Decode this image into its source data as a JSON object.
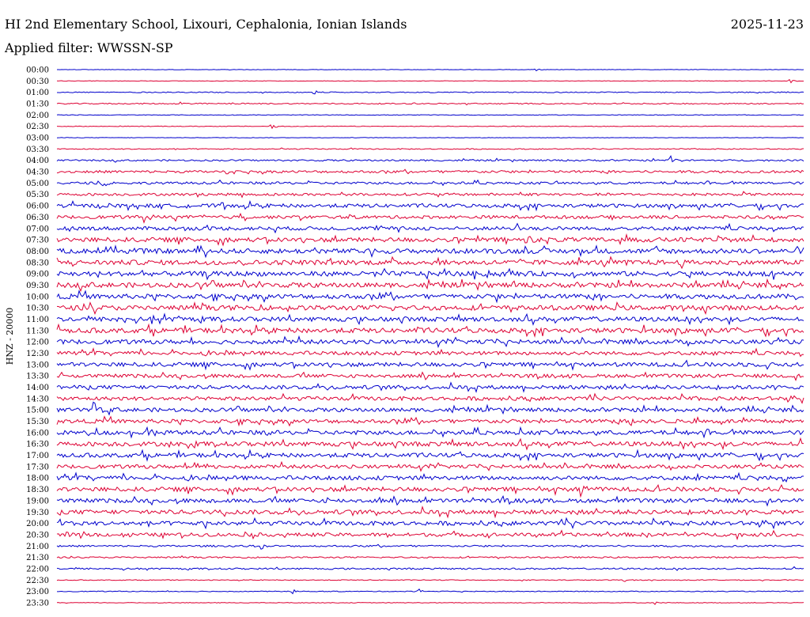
{
  "header": {
    "station": "HI 2nd Elementary School, Lixouri, Cephalonia, Ionian Islands",
    "date": "2025-11-23",
    "filter": "Applied filter: WWSSN-SP"
  },
  "chart_data": {
    "type": "line",
    "title": "HI 2nd Elementary School, Lixouri, Cephalonia, Ionian Islands",
    "subtitle": "Applied filter: WWSSN-SP",
    "ylabel": "HNZ - 20000",
    "xlabel": "",
    "row_labels": [
      "00:00",
      "00:30",
      "01:00",
      "01:30",
      "02:00",
      "02:30",
      "03:00",
      "03:30",
      "04:00",
      "04:30",
      "05:00",
      "05:30",
      "06:00",
      "06:30",
      "07:00",
      "07:30",
      "08:00",
      "08:30",
      "09:00",
      "09:30",
      "10:00",
      "10:30",
      "11:00",
      "11:30",
      "12:00",
      "12:30",
      "13:00",
      "13:30",
      "14:00",
      "14:30",
      "15:00",
      "15:30",
      "16:00",
      "16:30",
      "17:00",
      "17:30",
      "18:00",
      "18:30",
      "19:00",
      "19:30",
      "20:00",
      "20:30",
      "21:00",
      "21:30",
      "22:00",
      "22:30",
      "23:00",
      "23:30"
    ],
    "colors": [
      "#0000cc",
      "#dd0033"
    ],
    "noise_level": [
      0.3,
      0.3,
      0.6,
      0.7,
      0.4,
      0.4,
      0.3,
      0.6,
      1.0,
      1.6,
      1.5,
      1.6,
      2.3,
      2.0,
      2.3,
      2.8,
      3.0,
      3.0,
      3.0,
      3.0,
      3.0,
      3.0,
      2.8,
      3.0,
      2.7,
      2.3,
      2.6,
      2.2,
      2.4,
      2.4,
      2.4,
      2.5,
      2.6,
      2.8,
      2.6,
      2.3,
      2.5,
      2.7,
      2.5,
      2.7,
      2.6,
      2.2,
      1.1,
      0.9,
      1.0,
      0.5,
      0.5,
      0.4
    ],
    "events": [
      {
        "row": 8,
        "minute": 24.5,
        "amplitude": 20
      },
      {
        "row": 13,
        "minute": 3.5,
        "amplitude": 10
      },
      {
        "row": 14,
        "minute": 18.5,
        "amplitude": 8
      },
      {
        "row": 15,
        "minute": 18.8,
        "amplitude": 9
      },
      {
        "row": 10,
        "minute": 1.8,
        "amplitude": 6
      },
      {
        "row": 12,
        "minute": 6.6,
        "amplitude": 6
      },
      {
        "row": 18,
        "minute": 28.7,
        "amplitude": 9
      },
      {
        "row": 30,
        "minute": 1.5,
        "amplitude": 12
      },
      {
        "row": 32,
        "minute": 3.6,
        "amplitude": 10
      },
      {
        "row": 31,
        "minute": 23.0,
        "amplitude": 7
      },
      {
        "row": 37,
        "minute": 21.0,
        "amplitude": 11
      },
      {
        "row": 35,
        "minute": 5.5,
        "amplitude": 5
      },
      {
        "row": 1,
        "minute": 29.4,
        "amplitude": 3
      },
      {
        "row": 2,
        "minute": 10.3,
        "amplitude": 3
      },
      {
        "row": 3,
        "minute": 5.0,
        "amplitude": 3
      },
      {
        "row": 5,
        "minute": 8.6,
        "amplitude": 4
      },
      {
        "row": 9,
        "minute": 6.8,
        "amplitude": 4
      },
      {
        "row": 29,
        "minute": 5.3,
        "amplitude": 5
      },
      {
        "row": 33,
        "minute": 4.5,
        "amplitude": 4
      },
      {
        "row": 40,
        "minute": 0.1,
        "amplitude": 5
      },
      {
        "row": 41,
        "minute": 0.4,
        "amplitude": 5
      },
      {
        "row": 42,
        "minute": 8.2,
        "amplitude": 4
      },
      {
        "row": 47,
        "minute": 24.0,
        "amplitude": 2
      },
      {
        "row": 46,
        "minute": 9.4,
        "amplitude": 4
      },
      {
        "row": 46,
        "minute": 14.5,
        "amplitude": 4
      },
      {
        "row": 0,
        "minute": 19.2,
        "amplitude": 2
      },
      {
        "row": 45,
        "minute": 22.7,
        "amplitude": 3
      }
    ]
  }
}
